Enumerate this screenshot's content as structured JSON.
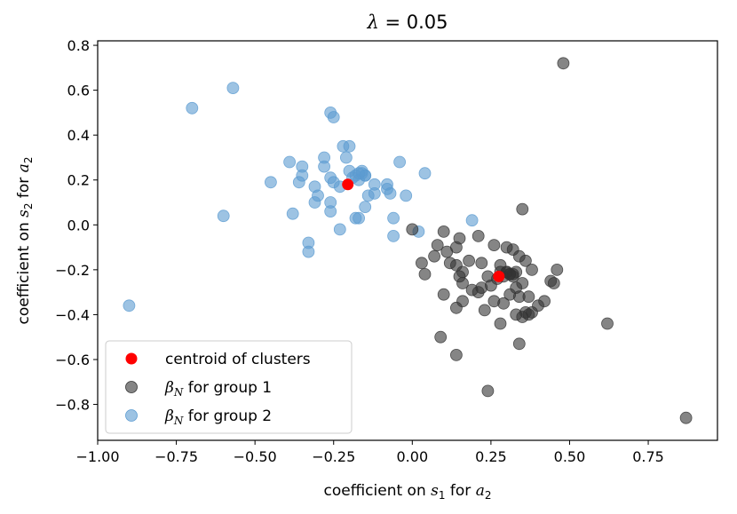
{
  "chart_data": {
    "type": "scatter",
    "title_var": "λ",
    "title_rest": " = 0.05",
    "xlabel_pre": "coefficient on ",
    "xlabel_var": "s",
    "xlabel_sub": "1",
    "xlabel_post": " for ",
    "xlabel_var2": "a",
    "xlabel_sub2": "2",
    "ylabel_pre": "coefficient on ",
    "ylabel_var": "s",
    "ylabel_sub": "2",
    "ylabel_post": " for ",
    "ylabel_var2": "a",
    "ylabel_sub2": "2",
    "xlim": [
      -1.0,
      0.97
    ],
    "ylim": [
      -0.96,
      0.82
    ],
    "xticks": [
      -1.0,
      -0.75,
      -0.5,
      -0.25,
      0.0,
      0.25,
      0.5,
      0.75
    ],
    "xtick_labels": [
      "−1.00",
      "−0.75",
      "−0.50",
      "−0.25",
      "0.00",
      "0.25",
      "0.50",
      "0.75"
    ],
    "yticks": [
      0.8,
      0.6,
      0.4,
      0.2,
      0.0,
      -0.2,
      -0.4,
      -0.6,
      -0.8
    ],
    "ytick_labels": [
      "0.8",
      "0.6",
      "0.4",
      "0.2",
      "0.0",
      "−0.2",
      "−0.4",
      "−0.6",
      "−0.8"
    ],
    "grid": false,
    "legend_position": "lower-left",
    "series": [
      {
        "name": "group-1",
        "legend_var": "β",
        "legend_sub": "N",
        "legend_rest": " for group 1",
        "color": "#333333",
        "points": [
          [
            0.48,
            0.72
          ],
          [
            0.35,
            0.07
          ],
          [
            0.0,
            -0.02
          ],
          [
            0.03,
            -0.17
          ],
          [
            0.1,
            -0.03
          ],
          [
            0.15,
            -0.06
          ],
          [
            0.08,
            -0.09
          ],
          [
            0.11,
            -0.12
          ],
          [
            0.14,
            -0.1
          ],
          [
            0.18,
            -0.16
          ],
          [
            0.21,
            -0.05
          ],
          [
            0.07,
            -0.14
          ],
          [
            0.16,
            -0.21
          ],
          [
            0.12,
            -0.17
          ],
          [
            0.22,
            -0.17
          ],
          [
            0.26,
            -0.09
          ],
          [
            0.28,
            -0.18
          ],
          [
            0.24,
            -0.23
          ],
          [
            0.3,
            -0.1
          ],
          [
            0.32,
            -0.11
          ],
          [
            0.34,
            -0.14
          ],
          [
            0.36,
            -0.16
          ],
          [
            0.38,
            -0.2
          ],
          [
            0.33,
            -0.21
          ],
          [
            0.31,
            -0.22
          ],
          [
            0.29,
            -0.23
          ],
          [
            0.3,
            -0.21
          ],
          [
            0.32,
            -0.23
          ],
          [
            0.28,
            -0.21
          ],
          [
            0.27,
            -0.24
          ],
          [
            0.35,
            -0.26
          ],
          [
            0.33,
            -0.28
          ],
          [
            0.31,
            -0.31
          ],
          [
            0.29,
            -0.35
          ],
          [
            0.34,
            -0.32
          ],
          [
            0.37,
            -0.32
          ],
          [
            0.36,
            -0.39
          ],
          [
            0.4,
            -0.36
          ],
          [
            0.42,
            -0.34
          ],
          [
            0.45,
            -0.26
          ],
          [
            0.46,
            -0.2
          ],
          [
            0.44,
            -0.25
          ],
          [
            0.38,
            -0.39
          ],
          [
            0.35,
            -0.41
          ],
          [
            0.33,
            -0.4
          ],
          [
            0.26,
            -0.34
          ],
          [
            0.25,
            -0.27
          ],
          [
            0.21,
            -0.3
          ],
          [
            0.22,
            -0.28
          ],
          [
            0.19,
            -0.29
          ],
          [
            0.16,
            -0.26
          ],
          [
            0.15,
            -0.23
          ],
          [
            0.16,
            -0.34
          ],
          [
            0.14,
            -0.37
          ],
          [
            0.1,
            -0.31
          ],
          [
            0.14,
            -0.18
          ],
          [
            0.04,
            -0.22
          ],
          [
            0.23,
            -0.38
          ],
          [
            0.28,
            -0.44
          ],
          [
            0.34,
            -0.53
          ],
          [
            0.09,
            -0.5
          ],
          [
            0.14,
            -0.58
          ],
          [
            0.62,
            -0.44
          ],
          [
            0.24,
            -0.74
          ],
          [
            0.87,
            -0.86
          ],
          [
            0.37,
            -0.4
          ],
          [
            0.31,
            -0.22
          ],
          [
            0.3,
            -0.21
          ],
          [
            0.32,
            -0.22
          ]
        ]
      },
      {
        "name": "group-2",
        "legend_var": "β",
        "legend_sub": "N",
        "legend_rest": " for group 2",
        "color": "#5b9bd1",
        "points": [
          [
            -0.57,
            0.61
          ],
          [
            -0.7,
            0.52
          ],
          [
            -0.26,
            0.5
          ],
          [
            -0.25,
            0.48
          ],
          [
            -0.22,
            0.35
          ],
          [
            -0.2,
            0.35
          ],
          [
            -0.21,
            0.3
          ],
          [
            -0.28,
            0.3
          ],
          [
            -0.39,
            0.28
          ],
          [
            -0.35,
            0.26
          ],
          [
            -0.28,
            0.26
          ],
          [
            -0.35,
            0.22
          ],
          [
            -0.26,
            0.21
          ],
          [
            -0.45,
            0.19
          ],
          [
            -0.36,
            0.19
          ],
          [
            -0.31,
            0.17
          ],
          [
            -0.25,
            0.19
          ],
          [
            -0.23,
            0.17
          ],
          [
            -0.2,
            0.24
          ],
          [
            -0.18,
            0.22
          ],
          [
            -0.16,
            0.23
          ],
          [
            -0.15,
            0.22
          ],
          [
            -0.17,
            0.2
          ],
          [
            -0.19,
            0.21
          ],
          [
            -0.16,
            0.24
          ],
          [
            -0.12,
            0.18
          ],
          [
            -0.12,
            0.14
          ],
          [
            -0.08,
            0.18
          ],
          [
            -0.08,
            0.16
          ],
          [
            -0.07,
            0.14
          ],
          [
            -0.04,
            0.28
          ],
          [
            0.04,
            0.23
          ],
          [
            -0.02,
            0.13
          ],
          [
            -0.15,
            0.08
          ],
          [
            -0.18,
            0.03
          ],
          [
            -0.17,
            0.03
          ],
          [
            -0.14,
            0.13
          ],
          [
            -0.3,
            0.13
          ],
          [
            -0.31,
            0.1
          ],
          [
            -0.26,
            0.1
          ],
          [
            -0.26,
            0.06
          ],
          [
            -0.38,
            0.05
          ],
          [
            -0.23,
            -0.02
          ],
          [
            -0.06,
            0.03
          ],
          [
            -0.06,
            -0.05
          ],
          [
            0.02,
            -0.03
          ],
          [
            0.19,
            0.02
          ],
          [
            -0.6,
            0.04
          ],
          [
            -0.33,
            -0.08
          ],
          [
            -0.33,
            -0.12
          ],
          [
            -0.9,
            -0.36
          ],
          [
            -0.15,
            0.22
          ],
          [
            -0.17,
            0.23
          ]
        ]
      },
      {
        "name": "centroids",
        "legend_label": "centroid of clusters",
        "color": "#ff0000",
        "points": [
          [
            -0.205,
            0.18
          ],
          [
            0.275,
            -0.23
          ]
        ]
      }
    ]
  }
}
